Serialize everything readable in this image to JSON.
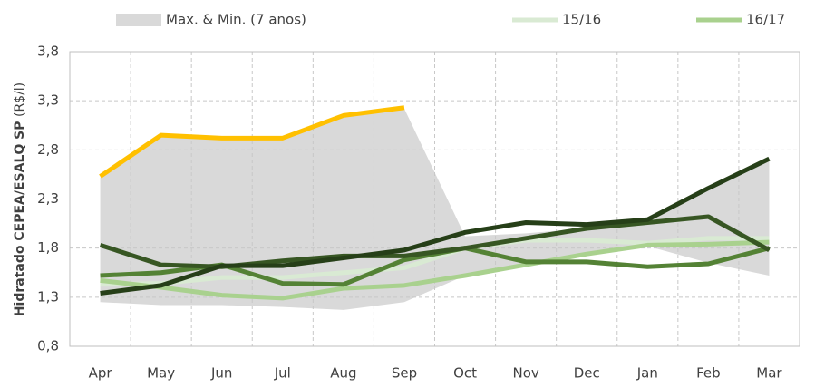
{
  "chart_data": {
    "type": "line",
    "y_label": "Hidratado CEPEA/ESALQ SP",
    "y_label_unit": "(R$/l)",
    "categories": [
      "Apr",
      "May",
      "Jun",
      "Jul",
      "Aug",
      "Sep",
      "Oct",
      "Nov",
      "Dec",
      "Jan",
      "Feb",
      "Mar"
    ],
    "band": {
      "name": "Max. & Min. (7 anos)",
      "color": "#d9d9d9",
      "max": [
        2.52,
        2.94,
        2.93,
        2.93,
        3.13,
        3.22,
        1.92,
        1.95,
        2.0,
        2.08,
        2.4,
        2.7
      ],
      "min": [
        1.25,
        1.22,
        1.22,
        1.2,
        1.17,
        1.25,
        1.52,
        1.63,
        1.72,
        1.82,
        1.65,
        1.52
      ]
    },
    "series": [
      {
        "name": "15/16",
        "color": "#d9ead3",
        "values": [
          1.43,
          1.44,
          1.5,
          1.5,
          1.55,
          1.6,
          1.8,
          1.88,
          1.88,
          1.85,
          1.9,
          1.9
        ]
      },
      {
        "name": "16/17",
        "color": "#a9d18e",
        "values": [
          1.47,
          1.4,
          1.32,
          1.29,
          1.39,
          1.42,
          1.52,
          1.63,
          1.74,
          1.83,
          1.84,
          1.86
        ]
      },
      {
        "color": "#548235",
        "values": [
          1.52,
          1.55,
          1.63,
          1.44,
          1.43,
          1.68,
          1.8,
          1.66,
          1.66,
          1.61,
          1.64,
          1.8
        ]
      },
      {
        "color": "#375623",
        "values": [
          1.83,
          1.63,
          1.61,
          1.67,
          1.72,
          1.72,
          1.8,
          1.9,
          2.0,
          2.06,
          2.12,
          1.78
        ]
      },
      {
        "color": "#263f18",
        "values": [
          1.34,
          1.42,
          1.62,
          1.62,
          1.7,
          1.78,
          1.96,
          2.06,
          2.04,
          2.09,
          2.41,
          2.71
        ]
      },
      {
        "color": "#ffc000",
        "values": [
          2.53,
          2.95,
          2.92,
          2.92,
          3.15,
          3.23,
          null,
          null,
          null,
          null,
          null,
          null
        ]
      }
    ],
    "ylim": [
      0.8,
      3.8
    ],
    "yticks": [
      {
        "value": 0.8,
        "label": "0,8"
      },
      {
        "value": 1.3,
        "label": "1,3"
      },
      {
        "value": 1.8,
        "label": "1,8"
      },
      {
        "value": 2.3,
        "label": "2,3"
      },
      {
        "value": 2.8,
        "label": "2,8"
      },
      {
        "value": 3.3,
        "label": "3,3"
      },
      {
        "value": 3.8,
        "label": "3,8"
      }
    ],
    "grid": true
  }
}
